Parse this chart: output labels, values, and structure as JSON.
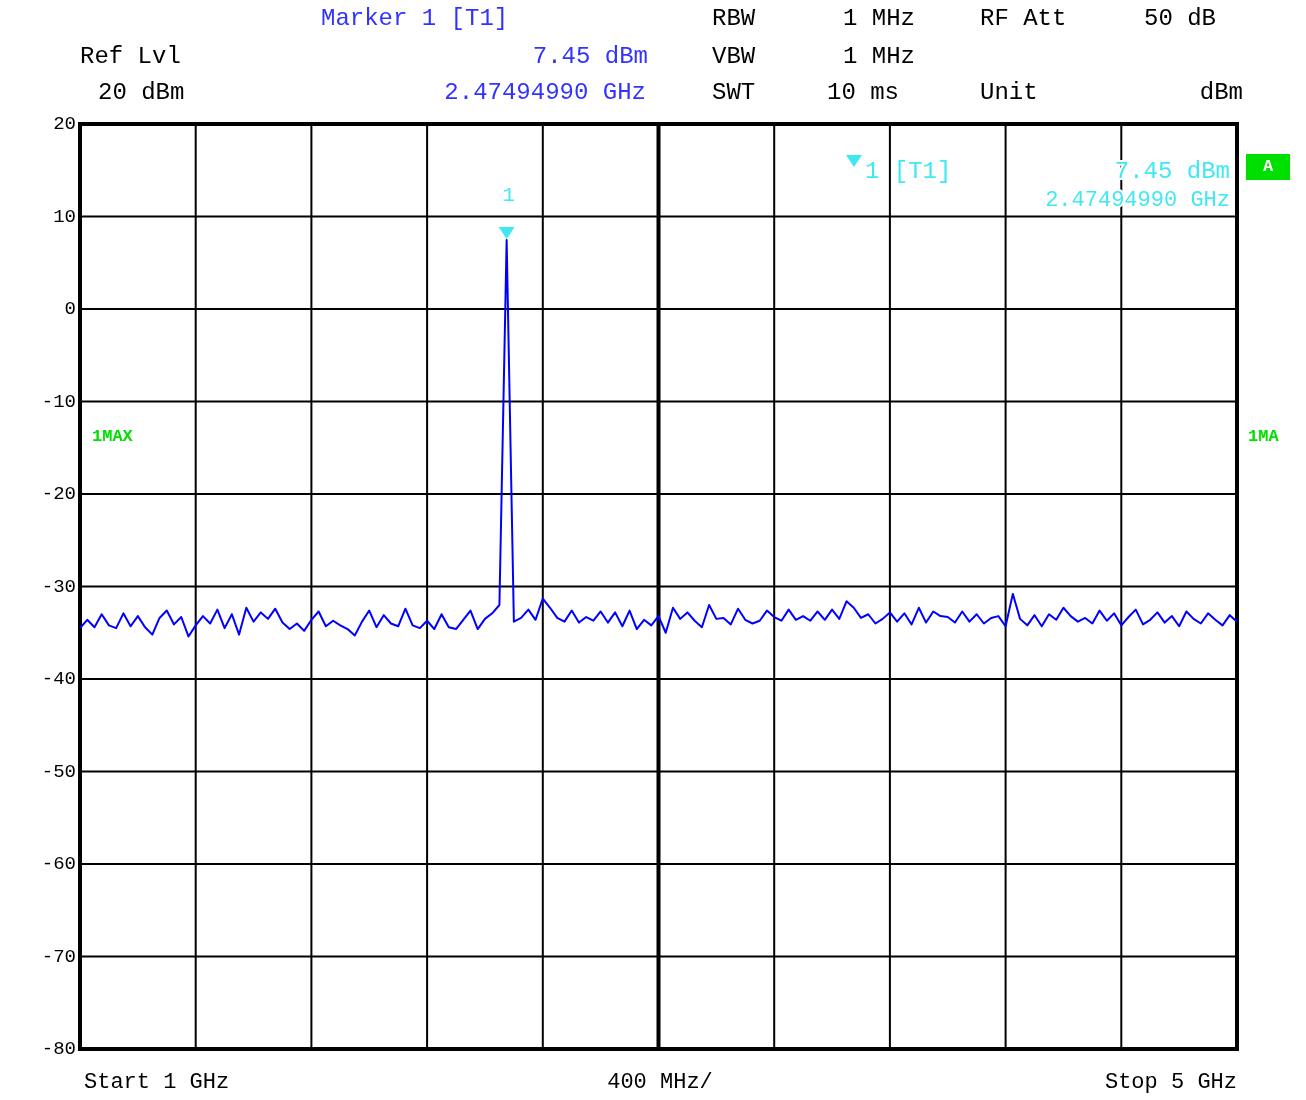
{
  "chart_data": {
    "type": "line",
    "title": "Marker 1 [T1]",
    "categories": [
      null,
      null,
      null,
      null,
      null,
      null,
      null,
      null,
      null,
      null,
      null,
      null,
      null,
      null,
      null,
      null,
      null,
      null,
      null,
      null,
      null,
      null,
      null,
      null,
      null,
      null,
      null,
      null,
      null,
      null,
      null,
      null,
      null,
      null,
      null,
      null,
      null,
      null,
      null,
      null,
      null,
      null,
      null,
      null,
      null,
      null,
      null,
      null,
      null,
      null,
      null,
      null,
      null,
      null,
      null,
      null,
      null,
      null,
      null,
      null,
      null,
      null,
      null,
      null,
      null,
      null,
      null,
      null,
      null,
      null,
      null,
      null,
      null,
      null,
      null,
      null,
      null,
      null,
      null,
      null,
      null,
      null,
      null,
      null,
      null,
      null,
      null,
      null,
      null,
      null,
      null,
      null,
      null,
      null,
      null,
      null,
      null,
      null,
      null,
      null,
      null,
      null,
      null,
      null,
      null,
      null,
      null,
      null,
      null,
      null,
      null,
      null,
      null,
      null,
      null,
      null,
      null,
      null,
      null,
      null,
      null,
      null,
      null,
      null,
      null,
      null,
      null,
      null,
      null,
      null,
      null,
      null,
      null,
      null,
      null,
      null,
      null,
      null,
      null,
      null,
      null,
      null,
      null,
      null,
      null,
      null,
      null,
      null,
      null,
      null,
      null,
      null,
      null,
      null,
      null,
      null,
      null,
      null,
      null,
      null,
      null
    ],
    "ylim": [
      -80,
      20
    ],
    "yticks": [
      20,
      10,
      0,
      -10,
      -20,
      -30,
      -40,
      -50,
      -60,
      -70,
      -80
    ],
    "grid": true,
    "tick_labels": "y",
    "annotations": [
      "Ref Lvl",
      "20 dBm",
      "7.45 dBm",
      "2.47494990 GHz",
      "RBW",
      "1 MHz",
      "VBW",
      "1 MHz",
      "SWT",
      "10 ms",
      "RF Att",
      "50 dB",
      "Unit",
      "dBm",
      "1 [T1]",
      "7.45 dBm",
      "2.47494990 GHz",
      "1MAX",
      "1MA",
      "A",
      "400 MHz/",
      "Start 1 GHz",
      "Stop 5 GHz",
      {
        "text": "1",
        "y": 7.45
      }
    ],
    "series": [
      {
        "color": "#0000ff",
        "values": [
          -34.5,
          -33.6,
          -34.4,
          -33.0,
          -34.2,
          -34.5,
          -32.9,
          -34.3,
          -33.2,
          -34.4,
          -35.2,
          -33.4,
          -32.6,
          -34.1,
          -33.3,
          -35.4,
          -34.2,
          -33.2,
          -34.0,
          -32.5,
          -34.5,
          -33.0,
          -35.2,
          -32.3,
          -33.8,
          -32.8,
          -33.5,
          -32.4,
          -33.9,
          -34.6,
          -34.0,
          -34.8,
          -33.6,
          -32.7,
          -34.3,
          -33.7,
          -34.2,
          -34.6,
          -35.3,
          -33.8,
          -32.6,
          -34.4,
          -33.1,
          -34.0,
          -34.3,
          -32.4,
          -34.2,
          -34.5,
          -33.7,
          -34.6,
          -33.0,
          -34.4,
          -34.6,
          -33.6,
          -32.6,
          -34.6,
          -33.5,
          -32.9,
          -32.0,
          7.45,
          -33.8,
          -33.4,
          -32.5,
          -33.6,
          -31.3,
          -32.3,
          -33.4,
          -33.8,
          -32.6,
          -33.9,
          -33.3,
          -33.7,
          -32.7,
          -33.9,
          -32.8,
          -34.3,
          -32.6,
          -34.6,
          -33.6,
          -34.2,
          -33.2,
          -35.0,
          -32.3,
          -33.5,
          -32.8,
          -33.7,
          -34.4,
          -32.0,
          -33.5,
          -33.4,
          -34.1,
          -32.4,
          -33.6,
          -34.0,
          -33.7,
          -32.6,
          -33.3,
          -33.7,
          -32.5,
          -33.6,
          -33.2,
          -33.7,
          -32.7,
          -33.6,
          -32.5,
          -33.5,
          -31.6,
          -32.3,
          -33.4,
          -33.0,
          -34.0,
          -33.5,
          -32.8,
          -33.8,
          -32.9,
          -34.1,
          -32.3,
          -33.9,
          -32.7,
          -33.2,
          -33.3,
          -33.9,
          -32.7,
          -33.8,
          -33.0,
          -34.0,
          -33.4,
          -33.2,
          -34.3,
          -30.8,
          -33.5,
          -34.2,
          -33.1,
          -34.3,
          -33.0,
          -33.6,
          -32.3,
          -33.2,
          -33.8,
          -33.4,
          -34.0,
          -32.6,
          -33.7,
          -32.9,
          -34.2,
          -33.3,
          -32.5,
          -34.1,
          -33.6,
          -32.8,
          -33.9,
          -33.2,
          -34.3,
          -32.7,
          -33.5,
          -34.0,
          -32.9,
          -33.6,
          -34.2,
          -33.1,
          -33.8
        ]
      }
    ]
  }
}
